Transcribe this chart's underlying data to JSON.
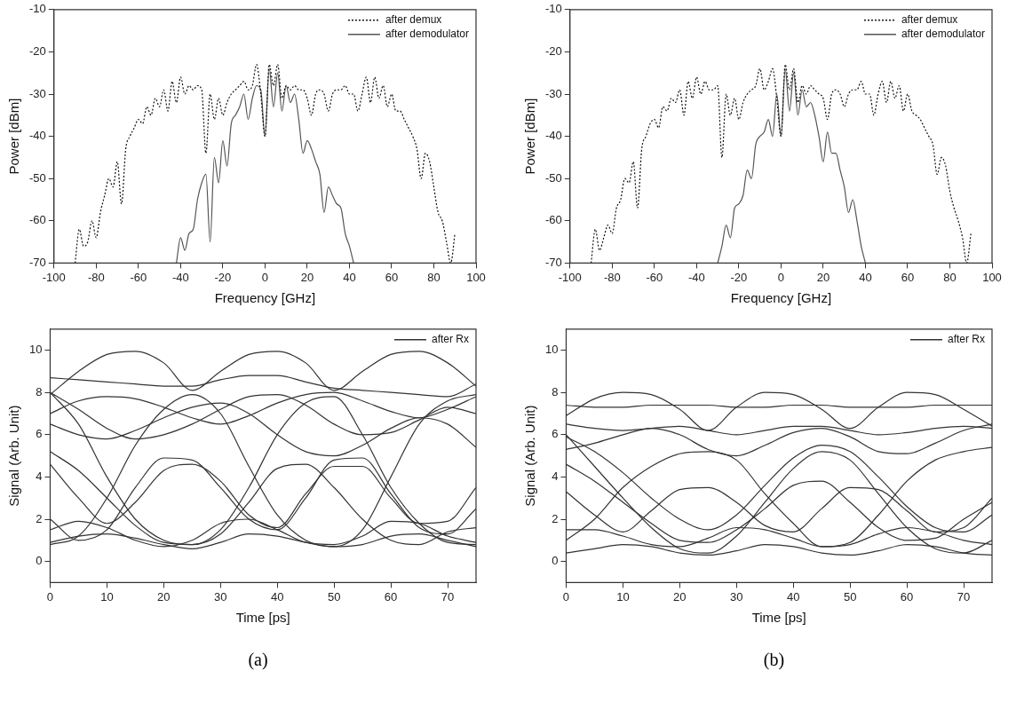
{
  "chart_data": [
    {
      "type": "line",
      "xlabel": "Frequency [GHz]",
      "ylabel": "Power [dBm]",
      "xlim": [
        -100,
        100
      ],
      "xticks": [
        -100,
        -80,
        -60,
        -40,
        -20,
        0,
        20,
        40,
        60,
        80,
        100
      ],
      "ylim": [
        -70,
        -10
      ],
      "yticks": [
        -70,
        -60,
        -50,
        -40,
        -30,
        -20,
        -10
      ],
      "legend": "top right",
      "marker": "none",
      "series": [
        {
          "name": "after demux",
          "color": "#111111",
          "line_style": "dotted",
          "x": [
            -90,
            -88,
            -86,
            -84,
            -82,
            -80,
            -78,
            -76,
            -74,
            -72,
            -70,
            -68,
            -66,
            -64,
            -62,
            -60,
            -58,
            -56,
            -54,
            -52,
            -50,
            -48,
            -46,
            -44,
            -42,
            -40,
            -38,
            -36,
            -34,
            -32,
            -30,
            -28,
            -26,
            -24,
            -22,
            -20,
            -18,
            -16,
            -14,
            -12,
            -10,
            -8,
            -6,
            -4,
            -2,
            0,
            2,
            4,
            6,
            8,
            10,
            12,
            14,
            16,
            18,
            20,
            22,
            24,
            26,
            28,
            30,
            32,
            34,
            36,
            38,
            40,
            42,
            44,
            46,
            48,
            50,
            52,
            54,
            56,
            58,
            60,
            62,
            64,
            66,
            68,
            70,
            72,
            74,
            76,
            78,
            80,
            82,
            84,
            86,
            88,
            90
          ],
          "values": [
            -70,
            -62,
            -66,
            -65,
            -60,
            -64,
            -58,
            -54,
            -50,
            -52,
            -46,
            -56,
            -43,
            -40,
            -38,
            -36,
            -37,
            -33,
            -35,
            -31,
            -33,
            -29,
            -34,
            -27,
            -32,
            -26,
            -30,
            -28,
            -29,
            -28,
            -29,
            -44,
            -30,
            -36,
            -31,
            -35,
            -32,
            -30,
            -29,
            -28,
            -27,
            -29,
            -28,
            -23,
            -30,
            -40,
            -23,
            -28,
            -23,
            -31,
            -28,
            -29,
            -28,
            -29,
            -29,
            -31,
            -35,
            -30,
            -29,
            -30,
            -34,
            -30,
            -29,
            -29,
            -28,
            -30,
            -30,
            -34,
            -30,
            -26,
            -32,
            -26,
            -31,
            -28,
            -33,
            -30,
            -34,
            -34,
            -36,
            -38,
            -40,
            -43,
            -50,
            -44,
            -46,
            -52,
            -58,
            -60,
            -65,
            -70,
            -63
          ]
        },
        {
          "name": "after demodulator",
          "color": "#555555",
          "line_style": "solid",
          "x": [
            -42,
            -40,
            -38,
            -36,
            -34,
            -32,
            -30,
            -28,
            -26,
            -24,
            -22,
            -20,
            -18,
            -16,
            -14,
            -12,
            -10,
            -8,
            -6,
            -4,
            -2,
            0,
            2,
            4,
            6,
            8,
            10,
            12,
            14,
            16,
            18,
            20,
            22,
            24,
            26,
            28,
            30,
            32,
            34,
            36,
            38,
            40,
            42
          ],
          "values": [
            -70,
            -64,
            -67,
            -63,
            -62,
            -55,
            -51,
            -49,
            -65,
            -45,
            -51,
            -41,
            -47,
            -37,
            -35,
            -33,
            -30,
            -36,
            -31,
            -28,
            -29,
            -40,
            -24,
            -33,
            -25,
            -34,
            -28,
            -32,
            -30,
            -36,
            -44,
            -41,
            -43,
            -46,
            -49,
            -58,
            -52,
            -54,
            -56,
            -57,
            -63,
            -66,
            -70
          ]
        }
      ]
    },
    {
      "type": "line",
      "xlabel": "Frequency [GHz]",
      "ylabel": "Power [dBm]",
      "xlim": [
        -100,
        100
      ],
      "xticks": [
        -100,
        -80,
        -60,
        -40,
        -20,
        0,
        20,
        40,
        60,
        80,
        100
      ],
      "ylim": [
        -70,
        -10
      ],
      "yticks": [
        -70,
        -60,
        -50,
        -40,
        -30,
        -20,
        -10
      ],
      "legend": "top right",
      "marker": "none",
      "series": [
        {
          "name": "after demux",
          "color": "#111111",
          "line_style": "dotted",
          "x": [
            -90,
            -88,
            -86,
            -84,
            -82,
            -80,
            -78,
            -76,
            -74,
            -72,
            -70,
            -68,
            -66,
            -64,
            -62,
            -60,
            -58,
            -56,
            -54,
            -52,
            -50,
            -48,
            -46,
            -44,
            -42,
            -40,
            -38,
            -36,
            -34,
            -32,
            -30,
            -28,
            -26,
            -24,
            -22,
            -20,
            -18,
            -16,
            -14,
            -12,
            -10,
            -8,
            -6,
            -4,
            -2,
            0,
            2,
            4,
            6,
            8,
            10,
            12,
            14,
            16,
            18,
            20,
            22,
            24,
            26,
            28,
            30,
            32,
            34,
            36,
            38,
            40,
            42,
            44,
            46,
            48,
            50,
            52,
            54,
            56,
            58,
            60,
            62,
            64,
            66,
            68,
            70,
            72,
            74,
            76,
            78,
            80,
            82,
            84,
            86,
            88,
            90
          ],
          "values": [
            -70,
            -62,
            -67,
            -64,
            -61,
            -63,
            -57,
            -55,
            -50,
            -51,
            -46,
            -57,
            -43,
            -40,
            -37,
            -36,
            -38,
            -33,
            -34,
            -31,
            -32,
            -29,
            -35,
            -27,
            -31,
            -26,
            -30,
            -27,
            -29,
            -29,
            -28,
            -45,
            -30,
            -35,
            -31,
            -36,
            -32,
            -30,
            -29,
            -28,
            -24,
            -29,
            -27,
            -24,
            -31,
            -40,
            -23,
            -29,
            -24,
            -32,
            -28,
            -30,
            -28,
            -29,
            -30,
            -31,
            -36,
            -30,
            -29,
            -30,
            -33,
            -30,
            -29,
            -29,
            -27,
            -30,
            -30,
            -35,
            -30,
            -27,
            -32,
            -27,
            -31,
            -28,
            -34,
            -30,
            -34,
            -35,
            -36,
            -38,
            -40,
            -42,
            -49,
            -45,
            -47,
            -53,
            -57,
            -60,
            -64,
            -70,
            -63
          ]
        },
        {
          "name": "after demodulator",
          "color": "#555555",
          "line_style": "solid",
          "x": [
            -30,
            -28,
            -26,
            -24,
            -22,
            -20,
            -18,
            -16,
            -14,
            -12,
            -10,
            -8,
            -6,
            -4,
            -2,
            0,
            2,
            4,
            6,
            8,
            10,
            12,
            14,
            16,
            18,
            20,
            22,
            24,
            26,
            28,
            30,
            32,
            34,
            36,
            38,
            40
          ],
          "values": [
            -70,
            -66,
            -61,
            -64,
            -57,
            -56,
            -54,
            -48,
            -50,
            -42,
            -40,
            -39,
            -36,
            -40,
            -30,
            -40,
            -24,
            -34,
            -25,
            -35,
            -29,
            -33,
            -32,
            -35,
            -40,
            -46,
            -39,
            -44,
            -44,
            -48,
            -52,
            -58,
            -55,
            -60,
            -66,
            -70
          ]
        }
      ]
    },
    {
      "type": "line",
      "xlabel": "Time [ps]",
      "ylabel": "Signal (Arb. Unit)",
      "xlim": [
        0,
        75
      ],
      "xticks": [
        0,
        10,
        20,
        30,
        40,
        50,
        60,
        70
      ],
      "ylim": [
        -1,
        11
      ],
      "yticks": [
        0,
        2,
        4,
        6,
        8,
        10
      ],
      "legend": "top right",
      "marker": "none",
      "annotations": [
        "(a)"
      ],
      "x": [
        0,
        5,
        10,
        15,
        20,
        25,
        30,
        35,
        40,
        45,
        50,
        55,
        60,
        65,
        70,
        75
      ],
      "series": [
        {
          "name": "after Rx",
          "color": "#333333",
          "values": [
            7.9,
            9.0,
            9.8,
            9.95,
            9.4,
            8.1,
            9.0,
            9.8,
            9.95,
            9.4,
            8.1,
            9.0,
            9.8,
            9.95,
            9.4,
            8.3
          ]
        },
        {
          "color": "#333333",
          "values": [
            8.0,
            6.5,
            4.0,
            2.0,
            1.0,
            0.8,
            1.5,
            3.5,
            6.0,
            7.5,
            7.8,
            6.0,
            3.5,
            1.8,
            0.9,
            0.8
          ]
        },
        {
          "color": "#333333",
          "values": [
            0.8,
            1.2,
            3.0,
            5.5,
            7.2,
            7.9,
            7.0,
            4.5,
            2.2,
            1.0,
            0.7,
            1.5,
            4.0,
            6.5,
            7.6,
            7.9
          ]
        },
        {
          "color": "#333333",
          "values": [
            1.5,
            1.9,
            1.6,
            1.0,
            0.7,
            1.0,
            1.8,
            2.0,
            1.5,
            0.9,
            0.8,
            1.2,
            1.9,
            1.8,
            1.2,
            0.9
          ]
        },
        {
          "color": "#333333",
          "values": [
            0.9,
            1.2,
            1.3,
            1.1,
            0.8,
            0.6,
            0.9,
            1.3,
            1.2,
            0.9,
            0.7,
            0.8,
            1.2,
            1.3,
            1.0,
            0.7
          ]
        },
        {
          "color": "#333333",
          "values": [
            2.0,
            1.0,
            1.5,
            3.5,
            4.9,
            4.8,
            3.5,
            2.0,
            1.5,
            3.0,
            4.8,
            4.9,
            3.2,
            1.6,
            1.3,
            2.5
          ]
        },
        {
          "color": "#333333",
          "values": [
            8.7,
            8.6,
            8.5,
            8.4,
            8.3,
            8.3,
            8.6,
            8.8,
            8.8,
            8.5,
            8.2,
            8.1,
            8.0,
            7.9,
            7.8,
            8.4
          ]
        },
        {
          "color": "#333333",
          "values": [
            7.0,
            7.6,
            7.8,
            7.7,
            7.3,
            6.8,
            6.5,
            6.9,
            7.5,
            7.9,
            8.0,
            7.6,
            7.1,
            6.8,
            7.2,
            7.8
          ]
        },
        {
          "color": "#333333",
          "values": [
            6.5,
            6.0,
            5.8,
            6.2,
            6.8,
            7.3,
            7.5,
            7.0,
            6.0,
            5.2,
            5.0,
            5.5,
            6.3,
            6.8,
            6.5,
            5.4
          ]
        },
        {
          "color": "#333333",
          "values": [
            5.2,
            4.3,
            3.0,
            1.7,
            0.9,
            0.8,
            1.3,
            2.8,
            4.4,
            4.6,
            3.5,
            2.0,
            1.0,
            0.8,
            1.4,
            1.6
          ]
        },
        {
          "color": "#333333",
          "values": [
            4.6,
            3.0,
            1.8,
            2.8,
            4.3,
            4.6,
            3.8,
            2.2,
            1.6,
            3.2,
            4.5,
            4.5,
            3.0,
            1.8,
            1.9,
            3.5
          ]
        },
        {
          "color": "#333333",
          "values": [
            8.0,
            7.2,
            6.3,
            5.8,
            6.0,
            6.5,
            7.2,
            7.8,
            7.9,
            7.4,
            6.5,
            6.0,
            6.1,
            6.7,
            7.3,
            7.0
          ]
        }
      ]
    },
    {
      "type": "line",
      "xlabel": "Time [ps]",
      "ylabel": "Signal (Arb. Unit)",
      "xlim": [
        0,
        75
      ],
      "xticks": [
        0,
        10,
        20,
        30,
        40,
        50,
        60,
        70
      ],
      "ylim": [
        -1,
        11
      ],
      "yticks": [
        0,
        2,
        4,
        6,
        8,
        10
      ],
      "legend": "top right",
      "marker": "none",
      "annotations": [
        "(b)"
      ],
      "x": [
        0,
        5,
        10,
        15,
        20,
        25,
        30,
        35,
        40,
        45,
        50,
        55,
        60,
        65,
        70,
        75
      ],
      "series": [
        {
          "name": "after Rx",
          "color": "#333333",
          "values": [
            6.9,
            7.7,
            8.0,
            7.9,
            7.2,
            6.2,
            7.3,
            8.0,
            7.9,
            7.2,
            6.3,
            7.3,
            8.0,
            7.9,
            7.2,
            6.4
          ]
        },
        {
          "color": "#333333",
          "values": [
            6.0,
            4.5,
            3.0,
            1.6,
            0.6,
            0.4,
            1.2,
            2.8,
            4.4,
            5.2,
            4.8,
            3.2,
            1.6,
            0.6,
            0.4,
            1.0
          ]
        },
        {
          "color": "#333333",
          "values": [
            1.0,
            2.0,
            3.5,
            4.5,
            5.1,
            5.2,
            4.8,
            3.2,
            1.8,
            0.7,
            0.9,
            2.2,
            3.8,
            4.8,
            5.2,
            5.4
          ]
        },
        {
          "color": "#333333",
          "values": [
            7.4,
            7.3,
            7.3,
            7.4,
            7.4,
            7.4,
            7.3,
            7.3,
            7.4,
            7.4,
            7.3,
            7.3,
            7.3,
            7.4,
            7.4,
            7.4
          ]
        },
        {
          "color": "#333333",
          "values": [
            6.5,
            6.3,
            6.2,
            6.3,
            6.4,
            6.2,
            6.0,
            6.2,
            6.4,
            6.4,
            6.2,
            6.0,
            6.1,
            6.3,
            6.4,
            6.3
          ]
        },
        {
          "color": "#333333",
          "values": [
            3.3,
            2.2,
            1.4,
            2.4,
            3.4,
            3.5,
            2.8,
            1.7,
            1.4,
            2.5,
            3.5,
            3.4,
            2.4,
            1.4,
            1.6,
            3.0
          ]
        },
        {
          "color": "#333333",
          "values": [
            1.5,
            1.5,
            1.2,
            0.8,
            0.7,
            1.1,
            1.6,
            1.5,
            1.1,
            0.7,
            0.8,
            1.3,
            1.6,
            1.4,
            1.0,
            0.8
          ]
        },
        {
          "color": "#333333",
          "values": [
            0.4,
            0.6,
            0.8,
            0.7,
            0.4,
            0.3,
            0.5,
            0.8,
            0.7,
            0.4,
            0.3,
            0.5,
            0.8,
            0.7,
            0.4,
            0.3
          ]
        },
        {
          "color": "#333333",
          "values": [
            5.3,
            5.6,
            6.0,
            6.3,
            6.0,
            5.3,
            5.0,
            5.5,
            6.1,
            6.3,
            5.9,
            5.2,
            5.1,
            5.6,
            6.2,
            6.5
          ]
        },
        {
          "color": "#333333",
          "values": [
            4.6,
            3.8,
            2.8,
            1.8,
            1.0,
            0.9,
            1.5,
            2.5,
            3.6,
            3.8,
            2.8,
            1.6,
            1.0,
            1.1,
            2.0,
            2.8
          ]
        },
        {
          "color": "#333333",
          "values": [
            5.9,
            5.2,
            4.2,
            3.0,
            2.0,
            1.5,
            2.2,
            3.6,
            4.9,
            5.5,
            5.2,
            4.0,
            2.6,
            1.6,
            1.4,
            2.2
          ]
        }
      ]
    }
  ]
}
